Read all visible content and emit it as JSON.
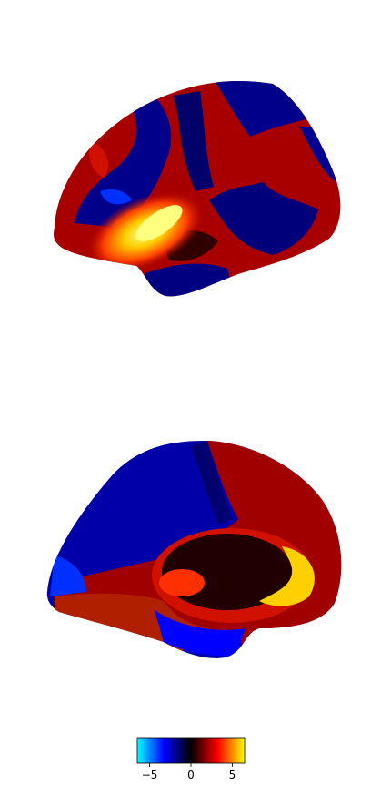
{
  "chart_data": {
    "type": "colorbar",
    "colors": [
      "#00ffff",
      "#0000ff",
      "#000000",
      "#ff0000",
      "#ffff00"
    ],
    "xlim": [
      -6.5,
      6.5
    ],
    "xticks": [
      {
        "value": -5,
        "label": "−5"
      },
      0,
      5
    ]
  }
}
